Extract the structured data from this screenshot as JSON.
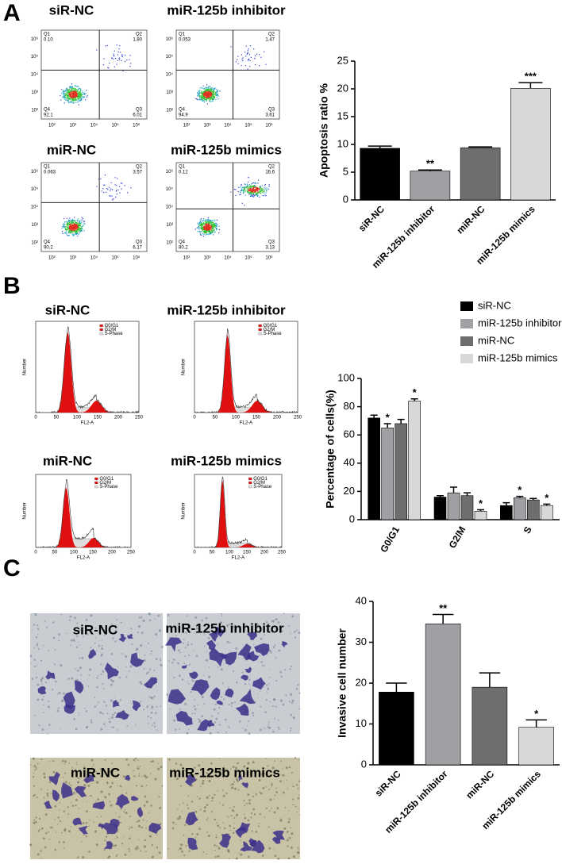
{
  "panels": {
    "A": {
      "label": "A",
      "plots": [
        {
          "title": "siR-NC",
          "quadrants": [
            "0.10",
            "1.80",
            "6.01",
            "92.1"
          ]
        },
        {
          "title": "miR-125b inhibitor",
          "quadrants": [
            "0.053",
            "1.47",
            "3.61",
            "94.9"
          ]
        },
        {
          "title": "miR-NC",
          "quadrants": [
            "0.063",
            "3.57",
            "6.17",
            "90.2"
          ]
        },
        {
          "title": "miR-125b mimics",
          "quadrants": [
            "0.12",
            "16.6",
            "3.13",
            "80.2"
          ]
        }
      ],
      "quadrant_labels": [
        "Q1",
        "Q2",
        "Q3",
        "Q4"
      ],
      "axis_ticks": [
        "10²",
        "10³",
        "10⁴",
        "10⁵",
        "10⁶"
      ]
    },
    "B": {
      "label": "B",
      "plots": [
        {
          "title": "siR-NC"
        },
        {
          "title": "miR-125b inhibitor"
        },
        {
          "title": "miR-NC"
        },
        {
          "title": "miR-125b mimics"
        }
      ],
      "x_ticks": [
        "0",
        "50",
        "100",
        "150",
        "200",
        "250"
      ],
      "x_label": "FL2-A",
      "y_label": "Number",
      "legend": [
        "G0/G1",
        "G2/M",
        "S-Phase"
      ]
    },
    "C": {
      "label": "C",
      "images": [
        {
          "title": "siR-NC"
        },
        {
          "title": "miR-125b inhibitor"
        },
        {
          "title": "miR-NC"
        },
        {
          "title": "miR-125b mimics"
        }
      ]
    }
  },
  "chart_data": [
    {
      "type": "bar",
      "y_label": "Apoptosis ratio %",
      "categories": [
        "siR-NC",
        "miR-125b inhibitor",
        "miR-NC",
        "miR-125b mimics"
      ],
      "values": [
        9.3,
        5.2,
        9.4,
        20.1
      ],
      "errors": [
        0.4,
        0.2,
        0.15,
        1.0
      ],
      "significance": [
        null,
        "**",
        null,
        "***"
      ],
      "colors": [
        "#000000",
        "#a0a0a4",
        "#6e6e6e",
        "#d8d8d8"
      ],
      "ylim": [
        0,
        25
      ],
      "yticks": [
        0,
        5,
        10,
        15,
        20,
        25
      ]
    },
    {
      "type": "grouped-bar",
      "y_label": "Percentage of cells(%)",
      "categories": [
        "G0/G1",
        "G2/M",
        "S"
      ],
      "series": [
        {
          "name": "siR-NC",
          "color": "#000000",
          "values": [
            72,
            16,
            10
          ],
          "errors": [
            2,
            1,
            2
          ],
          "significance": [
            null,
            null,
            null
          ]
        },
        {
          "name": "miR-125b inhibitor",
          "color": "#a0a0a4",
          "values": [
            65,
            19,
            15.5
          ],
          "errors": [
            3,
            4,
            1
          ],
          "significance": [
            "*",
            null,
            "*"
          ]
        },
        {
          "name": "miR-NC",
          "color": "#6e6e6e",
          "values": [
            68,
            17,
            14
          ],
          "errors": [
            3,
            2,
            1
          ],
          "significance": [
            null,
            null,
            null
          ]
        },
        {
          "name": "miR-125b mimics",
          "color": "#d8d8d8",
          "values": [
            84,
            6,
            10
          ],
          "errors": [
            1.5,
            1,
            1
          ],
          "significance": [
            "*",
            "*",
            "*"
          ]
        }
      ],
      "legend": "top-right",
      "ylim": [
        0,
        100
      ],
      "yticks": [
        0,
        20,
        40,
        60,
        80,
        100
      ]
    },
    {
      "type": "bar",
      "y_label": "Invasive cell number",
      "categories": [
        "siR-NC",
        "miR-125b inhibitor",
        "miR-NC",
        "miR-125b mimics"
      ],
      "values": [
        17.8,
        34.5,
        19,
        9.2
      ],
      "errors": [
        2.2,
        2.3,
        3.5,
        1.8
      ],
      "significance": [
        null,
        "**",
        null,
        "*"
      ],
      "colors": [
        "#000000",
        "#a0a0a4",
        "#6e6e6e",
        "#d8d8d8"
      ],
      "ylim": [
        0,
        40
      ],
      "yticks": [
        0,
        10,
        20,
        30,
        40
      ]
    }
  ]
}
